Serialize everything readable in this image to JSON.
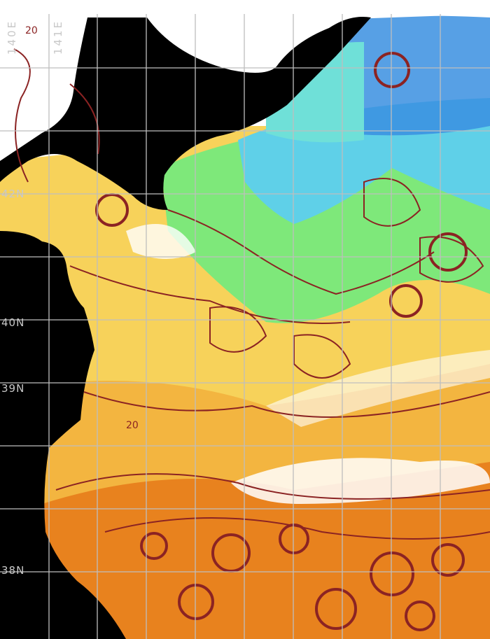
{
  "map": {
    "lat_labels": [
      "42N",
      "40N",
      "39N",
      "38N"
    ],
    "lon_labels": [
      "140E",
      "141E"
    ],
    "contour_labels": [
      "20",
      "20"
    ],
    "colors": {
      "land": "#000000",
      "no_data": "#ffffff",
      "grid": "#bebebe",
      "contour": "#8b2323",
      "cold": "#3a8fe0",
      "cool": "#5fd0e8",
      "mild": "#7ee87a",
      "warm": "#f7d25a",
      "warmer": "#f3a93a",
      "hot": "#e8821e"
    }
  }
}
